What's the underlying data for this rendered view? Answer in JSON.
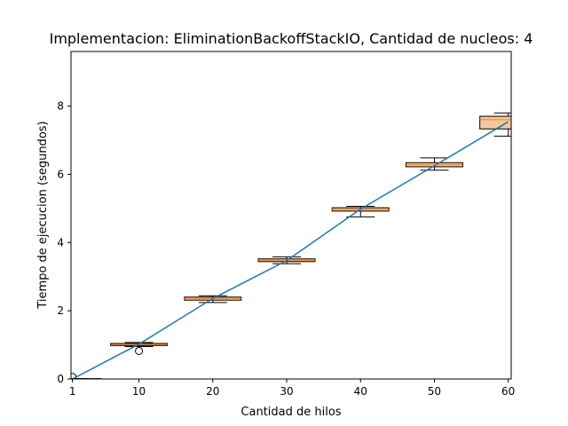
{
  "chart_data": {
    "type": "box",
    "title": "Implementacion: EliminationBackoffStackIO, Cantidad de nucleos: 4",
    "xlabel": "Cantidad de hilos",
    "ylabel": "Tiempo de ejecucion (segundos)",
    "xlim": [
      0.8,
      60.4
    ],
    "ylim": [
      0,
      9.6
    ],
    "xticks": [
      1,
      10,
      20,
      30,
      40,
      50,
      60
    ],
    "yticks": [
      0,
      2,
      4,
      6,
      8
    ],
    "grid": false,
    "colors": {
      "line": "#1f77b4",
      "median": "#ff7f0e",
      "box": "#000000"
    },
    "box_series": [
      {
        "x": 1,
        "whisker_low": 0.0,
        "q1": 0.0,
        "median": 0.0,
        "q3": 0.01,
        "whisker_high": 0.01,
        "outliers": [
          0.06
        ]
      },
      {
        "x": 10,
        "whisker_low": 0.95,
        "q1": 0.98,
        "median": 1.01,
        "q3": 1.04,
        "whisker_high": 1.07,
        "outliers": [
          0.82
        ]
      },
      {
        "x": 20,
        "whisker_low": 2.24,
        "q1": 2.31,
        "median": 2.36,
        "q3": 2.4,
        "whisker_high": 2.44,
        "outliers": []
      },
      {
        "x": 30,
        "whisker_low": 3.38,
        "q1": 3.44,
        "median": 3.48,
        "q3": 3.52,
        "whisker_high": 3.58,
        "outliers": []
      },
      {
        "x": 40,
        "whisker_low": 4.75,
        "q1": 4.92,
        "median": 4.97,
        "q3": 5.02,
        "whisker_high": 5.06,
        "outliers": []
      },
      {
        "x": 50,
        "whisker_low": 6.12,
        "q1": 6.22,
        "median": 6.28,
        "q3": 6.34,
        "whisker_high": 6.48,
        "outliers": []
      },
      {
        "x": 60,
        "whisker_low": 7.12,
        "q1": 7.33,
        "median": 7.6,
        "q3": 7.7,
        "whisker_high": 7.8,
        "outliers": []
      }
    ],
    "series": [
      {
        "x": [
          1,
          10,
          20,
          30,
          40,
          50,
          60
        ],
        "y": [
          0.0,
          1.02,
          2.36,
          3.47,
          4.98,
          6.25,
          7.54
        ]
      }
    ]
  }
}
